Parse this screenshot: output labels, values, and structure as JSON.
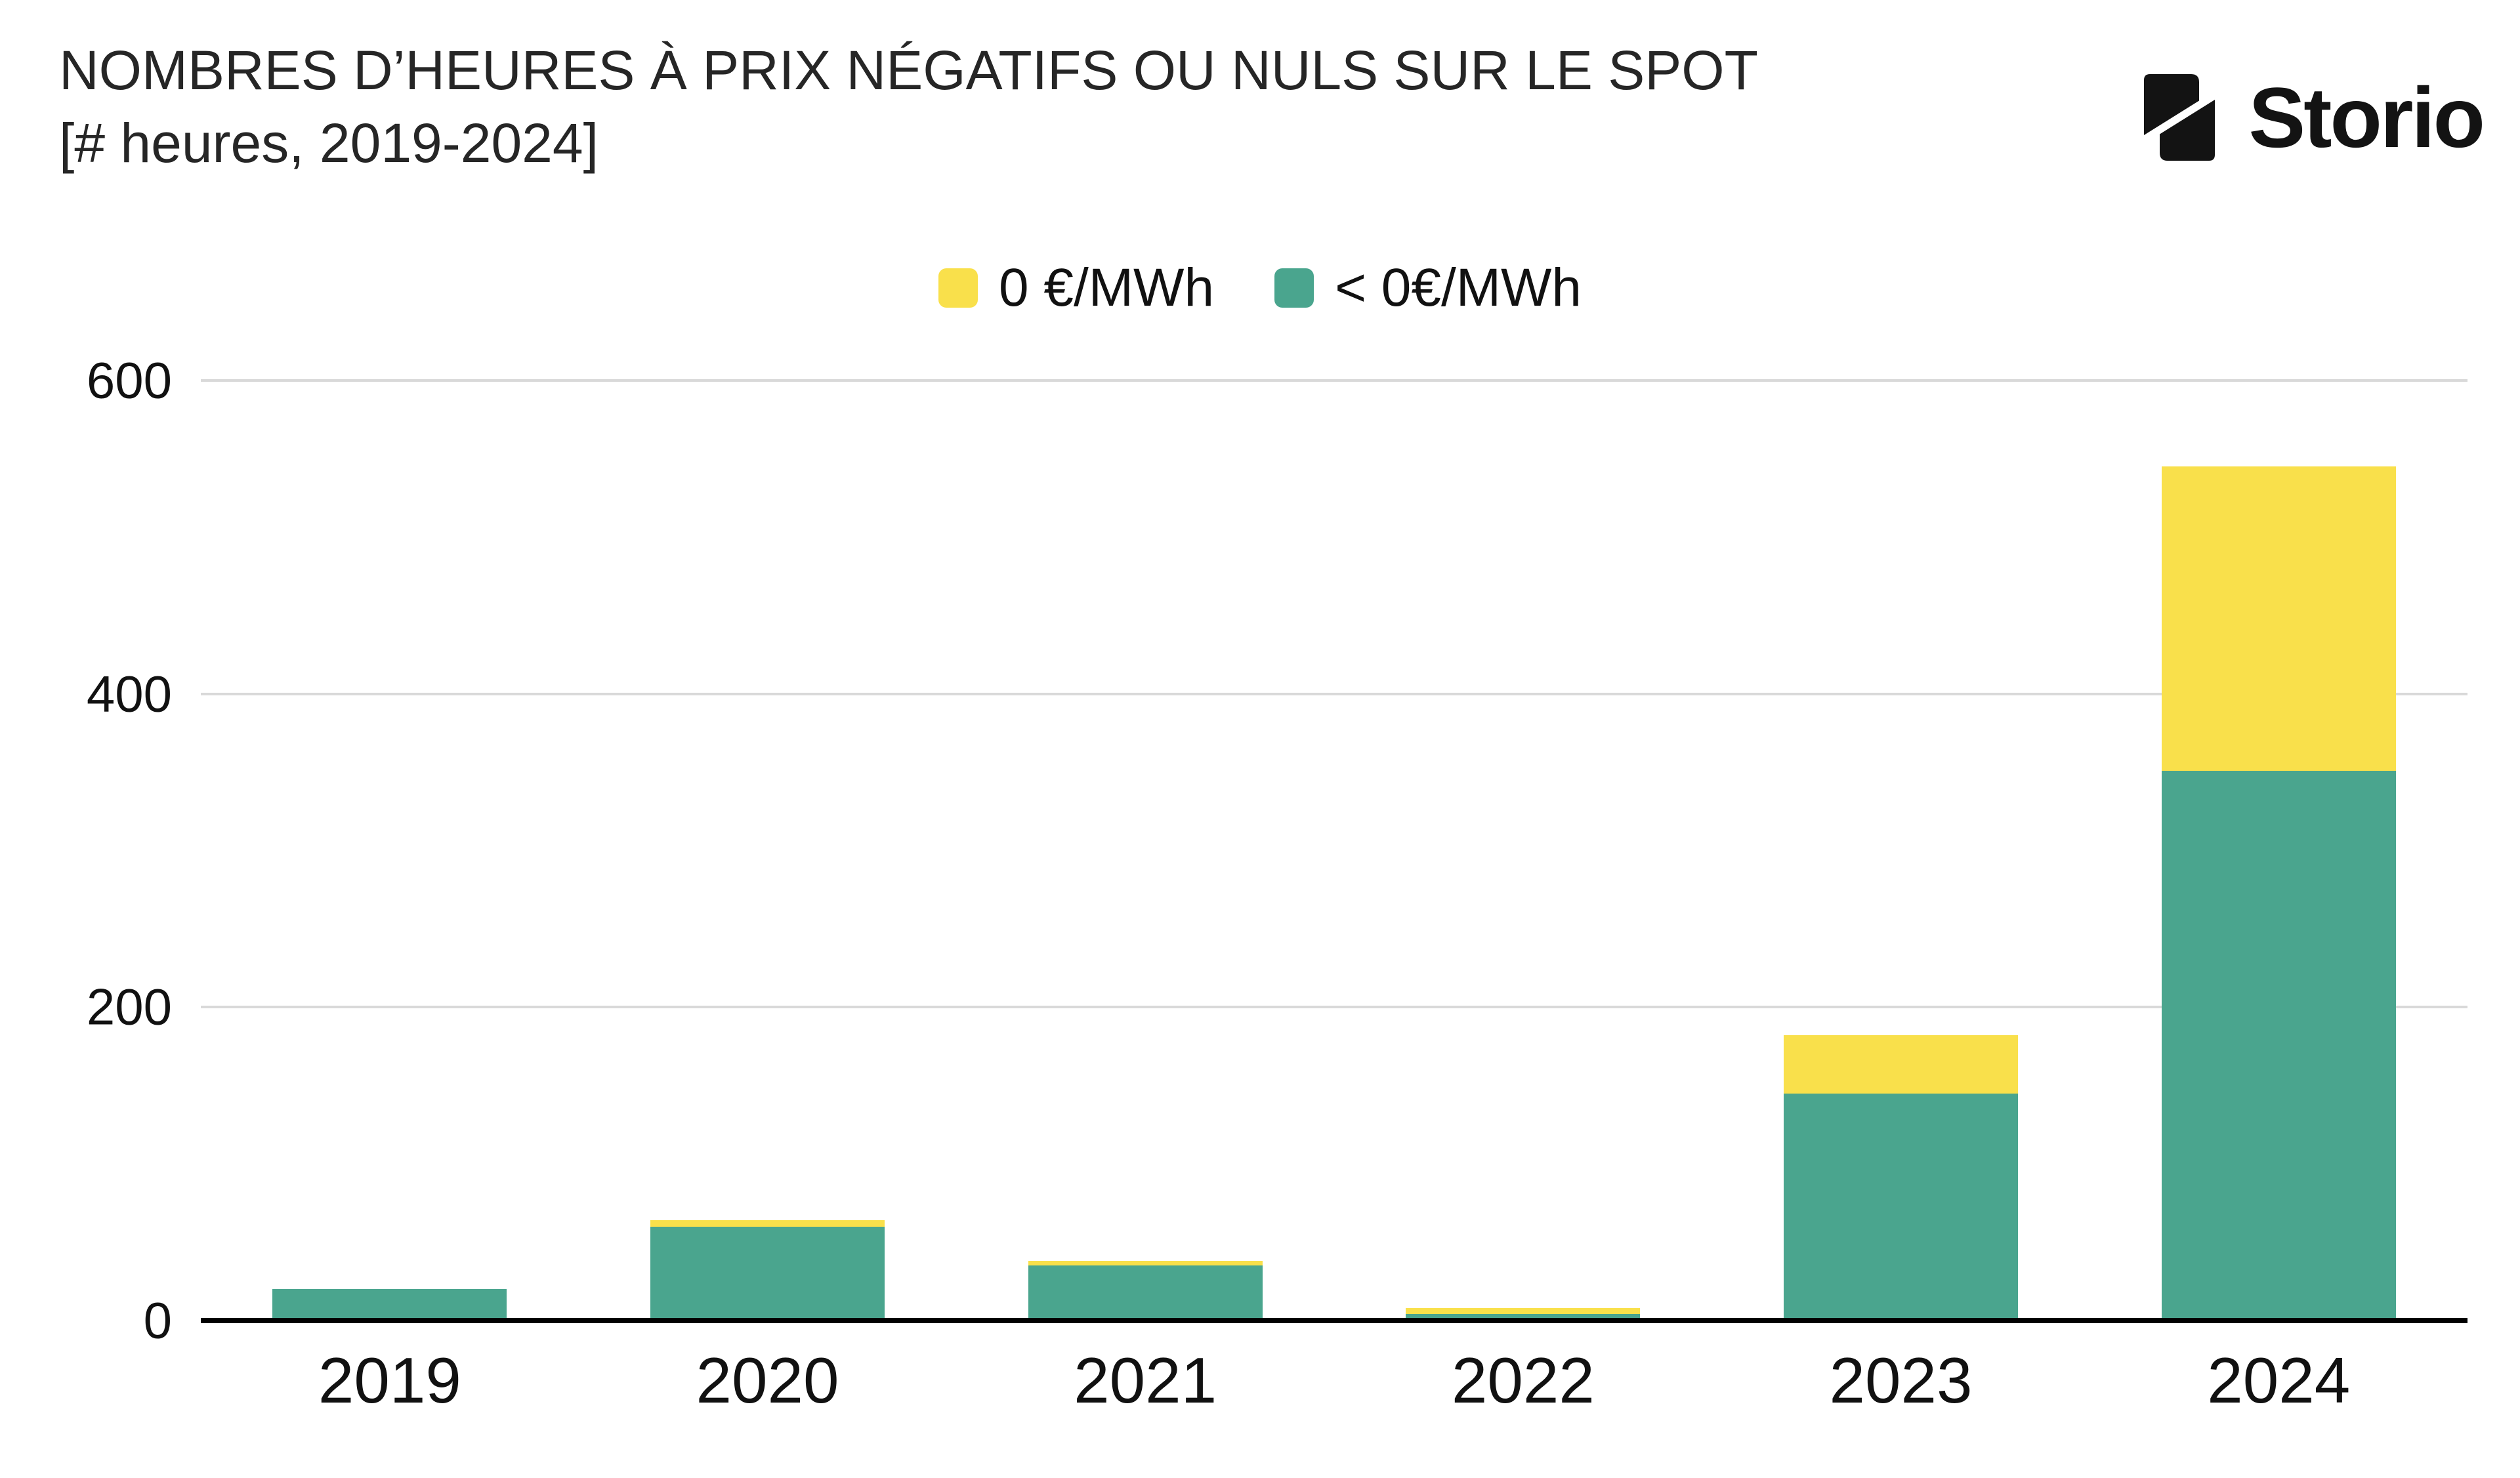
{
  "header": {
    "title": "NOMBRES D’HEURES À PRIX NÉGATIFS OU NULS SUR LE SPOT",
    "subtitle": "[# heures, 2019-2024]",
    "logo_text": "Storio"
  },
  "chart_data": {
    "type": "bar",
    "stacked": true,
    "title": "NOMBRES D’HEURES À PRIX NÉGATIFS OU NULS SUR LE SPOT",
    "subtitle": "[# heures, 2019-2024]",
    "categories": [
      "2019",
      "2020",
      "2021",
      "2022",
      "2023",
      "2024"
    ],
    "series": [
      {
        "name": "0 €/MWh",
        "color": "#F9E04B",
        "values": [
          0,
          4,
          3,
          4,
          37,
          194
        ]
      },
      {
        "name": "< 0€/MWh",
        "color": "#4AA58E",
        "values": [
          20,
          60,
          35,
          4,
          145,
          351
        ]
      }
    ],
    "ylabel": "# heures",
    "ylim": [
      0,
      600
    ],
    "yticks": [
      0,
      200,
      400,
      600
    ],
    "grid": true,
    "legend_position": "top",
    "axis_color": "#000000",
    "gridline_color": "#d9d9d9",
    "text_color": "#111111"
  }
}
